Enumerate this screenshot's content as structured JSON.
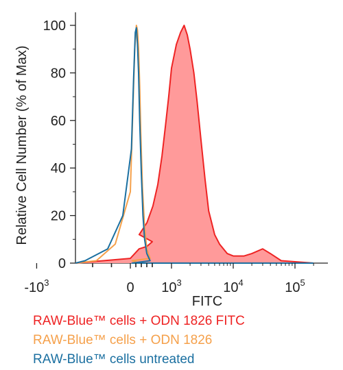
{
  "chart_data": {
    "type": "area",
    "xlabel": "FITC",
    "ylabel": "Relative Cell Number (% of Max)",
    "x_scale": "biexponential",
    "xlim": [
      -3000,
      200000
    ],
    "ylim": [
      0,
      100
    ],
    "y_ticks": [
      {
        "label": "0",
        "value": 0
      },
      {
        "label": "20",
        "value": 20
      },
      {
        "label": "40",
        "value": 40
      },
      {
        "label": "60",
        "value": 60
      },
      {
        "label": "80",
        "value": 80
      },
      {
        "label": "100",
        "value": 100
      }
    ],
    "x_ticks": [
      {
        "base": "-10",
        "exp": "3",
        "value": -1000
      },
      {
        "base": "0",
        "exp": "",
        "value": 0
      },
      {
        "base": "10",
        "exp": "3",
        "value": 1000
      },
      {
        "base": "10",
        "exp": "4",
        "value": 10000
      },
      {
        "base": "10",
        "exp": "5",
        "value": 100000
      }
    ],
    "grid": false,
    "legend_position": "bottom",
    "series": [
      {
        "name": "RAW-Blue™ cells untreated",
        "color": "#1a6fa0",
        "filled": false,
        "x": [
          -3000,
          -250,
          -120,
          -60,
          -20,
          10,
          30,
          45,
          55,
          65,
          75,
          85,
          100,
          115,
          130,
          150,
          180,
          230,
          300,
          200000
        ],
        "values": [
          0,
          0,
          1,
          6,
          20,
          48,
          78,
          97,
          99,
          92,
          80,
          60,
          38,
          20,
          10,
          4,
          1,
          0,
          0,
          0
        ]
      },
      {
        "name": "RAW-Blue™ cells + ODN 1826",
        "color": "#f5a04a",
        "filled": false,
        "x": [
          -3000,
          -200,
          -90,
          -40,
          0,
          20,
          40,
          55,
          65,
          75,
          85,
          95,
          110,
          130,
          150,
          180,
          230,
          300,
          200000
        ],
        "values": [
          0,
          0,
          1,
          8,
          30,
          60,
          90,
          100,
          98,
          90,
          75,
          55,
          32,
          15,
          6,
          2,
          1,
          0,
          0
        ]
      },
      {
        "name": "RAW-Blue™ cells + ODN 1826 FITC",
        "color": "#ee2323",
        "fill": "#ff9a9a",
        "filled": true,
        "x": [
          -3000,
          -200,
          0,
          80,
          150,
          200,
          300,
          400,
          500,
          600,
          700,
          800,
          900,
          1000,
          1200,
          1400,
          1600,
          1800,
          2000,
          2300,
          2600,
          3000,
          3500,
          4000,
          5000,
          6000,
          8000,
          10000,
          15000,
          20000,
          30000,
          40000,
          60000,
          200000
        ],
        "values": [
          0,
          0,
          2,
          6,
          7,
          9,
          12,
          17,
          24,
          33,
          45,
          58,
          70,
          82,
          92,
          97,
          100,
          96,
          90,
          80,
          68,
          52,
          35,
          22,
          12,
          8,
          4,
          3,
          3,
          4,
          6,
          4,
          1,
          0
        ]
      }
    ]
  }
}
